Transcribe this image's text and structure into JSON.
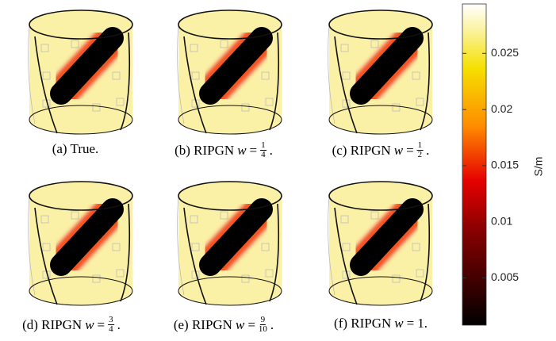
{
  "panels": [
    {
      "caption": [
        "(a) True."
      ]
    },
    {
      "caption": [
        "(b) RIPGN",
        "w",
        "=",
        {
          "num": "1",
          "den": "4"
        },
        "."
      ]
    },
    {
      "caption": [
        "(c) RIPGN",
        "w",
        "=",
        {
          "num": "1",
          "den": "2"
        },
        "."
      ]
    },
    {
      "caption": [
        "(d) RIPGN",
        "w",
        "=",
        {
          "num": "3",
          "den": "4"
        },
        "."
      ]
    },
    {
      "caption": [
        "(e) RIPGN",
        "w",
        "=",
        {
          "num": "9",
          "den": "10"
        },
        "."
      ]
    },
    {
      "caption": [
        "(f) RIPGN",
        "w",
        "=",
        "1."
      ]
    }
  ],
  "colorbar": {
    "label": "S/m",
    "lim": [
      0.0008,
      0.0294
    ],
    "ticks": [
      0.005,
      0.01,
      0.015,
      0.02,
      0.025
    ]
  }
}
